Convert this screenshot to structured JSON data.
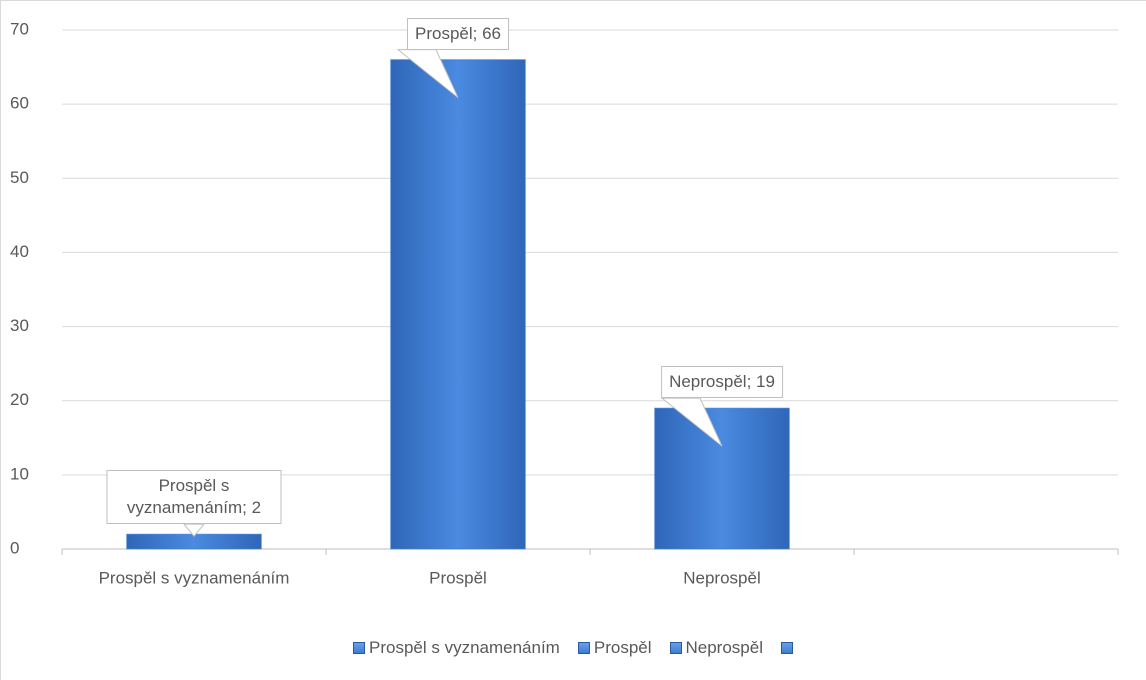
{
  "chart_data": {
    "type": "bar",
    "categories": [
      "Prospěl s vyznamenáním",
      "Prospěl",
      "Neprospěl",
      null
    ],
    "values": [
      2,
      66,
      19,
      null
    ],
    "value_labels": [
      "Prospěl s vyznamenáním; 2",
      "Prospěl; 66",
      "Neprospěl; 19",
      null
    ],
    "color": "#3c7dd4",
    "ylim": [
      0,
      70
    ],
    "yticks": [
      0,
      10,
      20,
      30,
      40,
      50,
      60,
      70
    ],
    "grid": true
  }
}
